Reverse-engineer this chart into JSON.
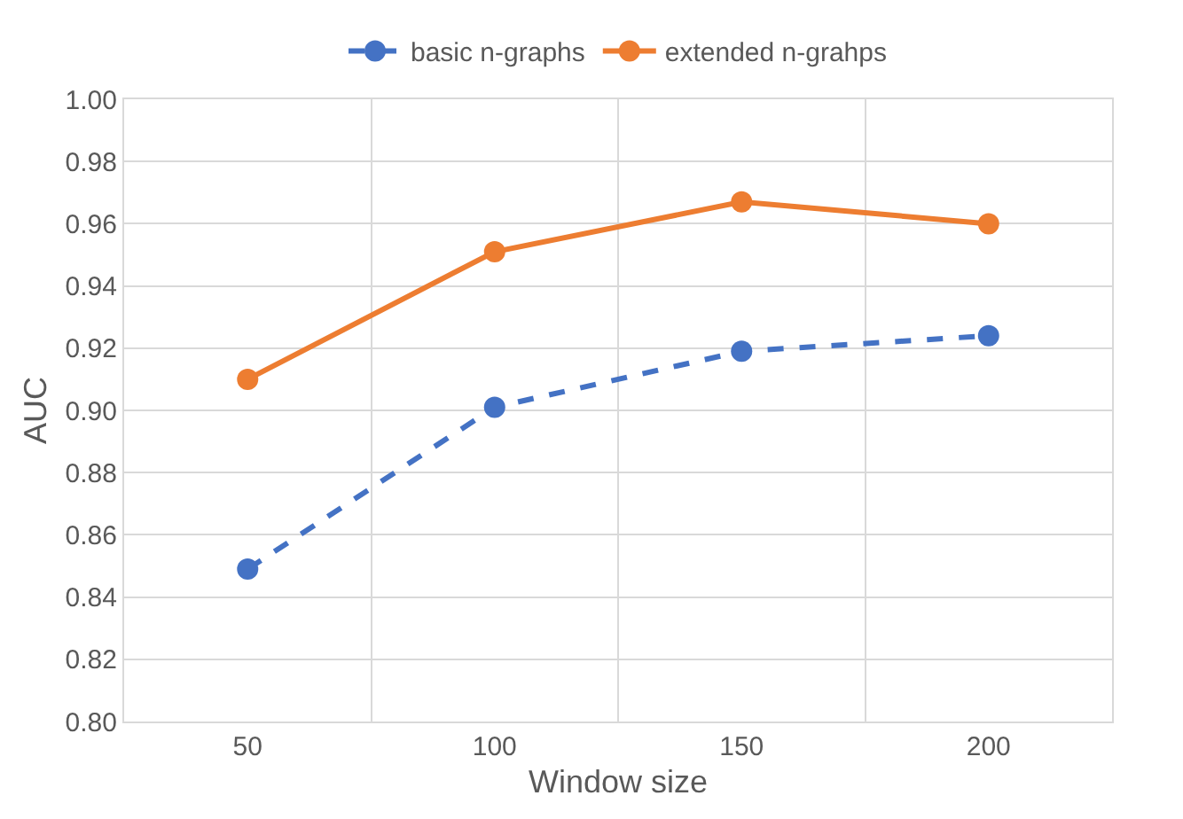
{
  "chart_data": {
    "type": "line",
    "xlabel": "Window size",
    "ylabel": "AUC",
    "categories": [
      "50",
      "100",
      "150",
      "200"
    ],
    "series": [
      {
        "name": "basic n-graphs",
        "color": "#4472c4",
        "values": [
          0.849,
          0.901,
          0.919,
          0.924
        ],
        "line_style": "dashed"
      },
      {
        "name": "extended n-grahps",
        "color": "#ed7d31",
        "values": [
          0.91,
          0.951,
          0.967,
          0.96
        ],
        "line_style": "solid"
      }
    ],
    "ylim": [
      0.8,
      1.0
    ],
    "yticks": [
      {
        "value": 0.8,
        "label": "0.80"
      },
      {
        "value": 0.82,
        "label": "0.82"
      },
      {
        "value": 0.84,
        "label": "0.84"
      },
      {
        "value": 0.86,
        "label": "0.86"
      },
      {
        "value": 0.88,
        "label": "0.88"
      },
      {
        "value": 0.9,
        "label": "0.90"
      },
      {
        "value": 0.92,
        "label": "0.92"
      },
      {
        "value": 0.94,
        "label": "0.94"
      },
      {
        "value": 0.96,
        "label": "0.96"
      },
      {
        "value": 0.98,
        "label": "0.98"
      },
      {
        "value": 1.0,
        "label": "1.00"
      }
    ],
    "grid": true,
    "legend": "top",
    "marker": "circle"
  }
}
